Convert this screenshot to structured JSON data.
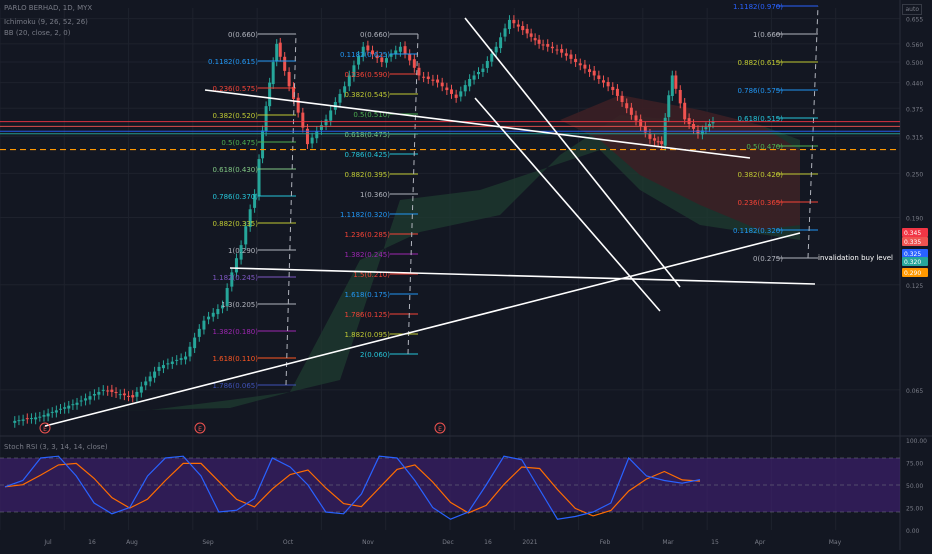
{
  "header": {
    "symbol": "PARLO BERHAD, 1D, MYX",
    "ichimoku": "Ichimoku (9, 26, 52, 26)",
    "bb": "BB (20, close, 2, 0)",
    "stoch": "Stoch RSI (3, 3, 14, 14, close)",
    "scale_btn": "auto"
  },
  "colors": {
    "background": "#131722",
    "grid": "#1e222d",
    "up": "#26a69a",
    "down": "#ef5350",
    "trendline": "#ffffff",
    "cloud_bull": "#1e3a2f",
    "cloud_bear": "#3b1f25",
    "stoch_band": "#3c1f6b",
    "k_line": "#2962ff",
    "d_line": "#ff6d00",
    "dashed_level": "#ff9800"
  },
  "price_axis": {
    "ticks": [
      "0.655",
      "0.560",
      "0.500",
      "0.440",
      "0.375",
      "0.315",
      "0.250",
      "0.190",
      "0.125",
      "0.065"
    ],
    "badges": [
      {
        "text": "0.345",
        "color": "#f23645"
      },
      {
        "text": "0.335",
        "color": "#ef5350"
      },
      {
        "text": "0.325",
        "color": "#2962ff"
      },
      {
        "text": "0.320",
        "color": "#26a69a"
      },
      {
        "text": "0.290",
        "color": "#ff9800"
      }
    ]
  },
  "time_axis": {
    "labels": [
      "Jul",
      "16",
      "Aug",
      "Sep",
      "Oct",
      "Nov",
      "Dec",
      "16",
      "2021",
      "Feb",
      "Mar",
      "15",
      "Apr",
      "May"
    ]
  },
  "stoch_axis": {
    "ticks": [
      "100.00",
      "75.00",
      "50.00",
      "25.00",
      "0.00"
    ]
  },
  "annotation": "invalidation buy level",
  "event_marker": "E",
  "fib_sets": [
    {
      "levels": [
        {
          "label": "0(0.660)",
          "color": "#b2b5be"
        },
        {
          "label": "0.1182(0.615)",
          "color": "#2196f3"
        },
        {
          "label": "0.236(0.575)",
          "color": "#f44336"
        },
        {
          "label": "0.382(0.520)",
          "color": "#c0ca33"
        },
        {
          "label": "0.5(0.475)",
          "color": "#4caf50"
        },
        {
          "label": "0.618(0.430)",
          "color": "#81c784"
        },
        {
          "label": "0.786(0.370)",
          "color": "#26c6da"
        },
        {
          "label": "0.882(0.335)",
          "color": "#c0ca33"
        },
        {
          "label": "1(0.290)",
          "color": "#b2b5be"
        },
        {
          "label": "1.182(0.245)",
          "color": "#7e57c2"
        },
        {
          "label": "1.3(0.205)",
          "color": "#b2b5be"
        },
        {
          "label": "1.382(0.180)",
          "color": "#9c27b0"
        },
        {
          "label": "1.618(0.110)",
          "color": "#ff5722"
        },
        {
          "label": "1.786(0.065)",
          "color": "#3f51b5"
        }
      ]
    },
    {
      "levels": [
        {
          "label": "0(0.660)",
          "color": "#b2b5be"
        },
        {
          "label": "0.1182(0.625)",
          "color": "#2196f3"
        },
        {
          "label": "0.236(0.590)",
          "color": "#f44336"
        },
        {
          "label": "0.382(0.545)",
          "color": "#c0ca33"
        },
        {
          "label": "0.5(0.510)",
          "color": "#4caf50"
        },
        {
          "label": "0.618(0.475)",
          "color": "#81c784"
        },
        {
          "label": "0.786(0.425)",
          "color": "#26c6da"
        },
        {
          "label": "0.882(0.395)",
          "color": "#c0ca33"
        },
        {
          "label": "1(0.360)",
          "color": "#b2b5be"
        },
        {
          "label": "1.1182(0.320)",
          "color": "#2196f3"
        },
        {
          "label": "1.236(0.285)",
          "color": "#f44336"
        },
        {
          "label": "1.382(0.245)",
          "color": "#9c27b0"
        },
        {
          "label": "1.5(0.210)",
          "color": "#f44336"
        },
        {
          "label": "1.618(0.175)",
          "color": "#2196f3"
        },
        {
          "label": "1.786(0.125)",
          "color": "#f44336"
        },
        {
          "label": "1.882(0.095)",
          "color": "#c0ca33"
        },
        {
          "label": "2(0.060)",
          "color": "#26c6da"
        }
      ]
    },
    {
      "levels": [
        {
          "label": "1.1182(0.970)",
          "color": "#2962ff"
        },
        {
          "label": "1(0.660)",
          "color": "#b2b5be"
        },
        {
          "label": "0.882(0.615)",
          "color": "#c0ca33"
        },
        {
          "label": "0.786(0.575)",
          "color": "#2196f3"
        },
        {
          "label": "0.618(0.515)",
          "color": "#26c6da"
        },
        {
          "label": "0.5(0.470)",
          "color": "#4caf50"
        },
        {
          "label": "0.382(0.420)",
          "color": "#c0ca33"
        },
        {
          "label": "0.236(0.365)",
          "color": "#f44336"
        },
        {
          "label": "0.1182(0.320)",
          "color": "#2196f3"
        },
        {
          "label": "0(0.275)",
          "color": "#b2b5be"
        }
      ]
    }
  ],
  "chart_data": {
    "type": "candlestick",
    "close_series": [
      [
        "2020-06-20",
        0.055
      ],
      [
        "2020-07-01",
        0.06
      ],
      [
        "2020-07-15",
        0.065
      ],
      [
        "2020-07-25",
        0.062
      ],
      [
        "2020-08-05",
        0.075
      ],
      [
        "2020-08-15",
        0.08
      ],
      [
        "2020-08-25",
        0.1
      ],
      [
        "2020-09-01",
        0.11
      ],
      [
        "2020-09-08",
        0.16
      ],
      [
        "2020-09-15",
        0.22
      ],
      [
        "2020-09-20",
        0.38
      ],
      [
        "2020-09-24",
        0.56
      ],
      [
        "2020-09-28",
        0.43
      ],
      [
        "2020-10-03",
        0.3
      ],
      [
        "2020-10-10",
        0.35
      ],
      [
        "2020-10-17",
        0.43
      ],
      [
        "2020-10-24",
        0.55
      ],
      [
        "2020-10-31",
        0.5
      ],
      [
        "2020-11-07",
        0.55
      ],
      [
        "2020-11-14",
        0.46
      ],
      [
        "2020-11-21",
        0.44
      ],
      [
        "2020-11-28",
        0.4
      ],
      [
        "2020-12-05",
        0.45
      ],
      [
        "2020-12-10",
        0.48
      ],
      [
        "2020-12-15",
        0.55
      ],
      [
        "2020-12-20",
        0.65
      ],
      [
        "2020-12-25",
        0.61
      ],
      [
        "2020-12-30",
        0.56
      ],
      [
        "2021-01-05",
        0.54
      ],
      [
        "2021-01-12",
        0.5
      ],
      [
        "2021-01-19",
        0.46
      ],
      [
        "2021-01-26",
        0.42
      ],
      [
        "2021-02-02",
        0.36
      ],
      [
        "2021-02-09",
        0.31
      ],
      [
        "2021-02-16",
        0.3
      ],
      [
        "2021-02-20",
        0.46
      ],
      [
        "2021-02-24",
        0.35
      ],
      [
        "2021-03-01",
        0.32
      ],
      [
        "2021-03-06",
        0.34
      ],
      [
        "2021-03-10",
        0.345
      ]
    ],
    "stoch_k": [
      48,
      55,
      80,
      82,
      60,
      30,
      18,
      25,
      60,
      80,
      82,
      60,
      20,
      22,
      35,
      80,
      70,
      50,
      20,
      18,
      40,
      82,
      80,
      55,
      25,
      12,
      20,
      50,
      82,
      78,
      45,
      12,
      15,
      20,
      30,
      80,
      60,
      55,
      52,
      56
    ],
    "ylim": [
      0.05,
      0.7
    ],
    "y_scale": "log",
    "stoch_ylim": [
      0,
      100
    ]
  }
}
